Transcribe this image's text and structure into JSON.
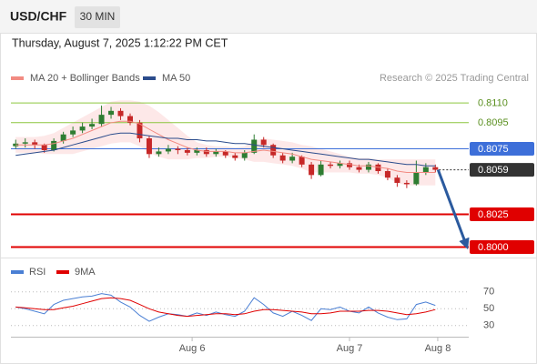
{
  "header": {
    "symbol": "USD/CHF",
    "timeframe": "30 MIN",
    "datetime": "Thursday, August 7, 2025 1:12:22 PM CET"
  },
  "chart_data": [
    {
      "type": "candlestick",
      "source": "Research © 2025 Trading Central",
      "xlim": [
        -0.5,
        47.5
      ],
      "ylim": [
        0.7992,
        0.814
      ],
      "up_color": "#2e7d32",
      "down_color": "#c62828",
      "open": [
        0.8077,
        0.8079,
        0.808,
        0.8078,
        0.8074,
        0.8081,
        0.8086,
        0.8089,
        0.8092,
        0.8094,
        0.8101,
        0.8104,
        0.81,
        0.8095,
        0.8083,
        0.8071,
        0.8073,
        0.8075,
        0.8074,
        0.8072,
        0.8074,
        0.8071,
        0.8073,
        0.807,
        0.8068,
        0.8072,
        0.8082,
        0.8078,
        0.807,
        0.8066,
        0.8069,
        0.8063,
        0.8055,
        0.8063,
        0.8062,
        0.8064,
        0.8061,
        0.8059,
        0.8063,
        0.8058,
        0.8053,
        0.8049,
        0.8048,
        0.8057,
        0.8061
      ],
      "high": [
        0.8082,
        0.8083,
        0.8082,
        0.8079,
        0.8083,
        0.8088,
        0.8092,
        0.8095,
        0.8098,
        0.8108,
        0.8107,
        0.8106,
        0.8102,
        0.8097,
        0.8085,
        0.8076,
        0.8078,
        0.8077,
        0.8076,
        0.8076,
        0.8076,
        0.8075,
        0.8074,
        0.8072,
        0.8074,
        0.8086,
        0.8084,
        0.8079,
        0.8072,
        0.8072,
        0.807,
        0.8065,
        0.8066,
        0.8065,
        0.8066,
        0.8066,
        0.8063,
        0.8065,
        0.8064,
        0.806,
        0.8055,
        0.8051,
        0.8066,
        0.8064,
        0.8063
      ],
      "low": [
        0.8075,
        0.8076,
        0.8075,
        0.8072,
        0.8073,
        0.8079,
        0.8084,
        0.8087,
        0.809,
        0.8092,
        0.8098,
        0.8097,
        0.8093,
        0.808,
        0.8068,
        0.8069,
        0.8071,
        0.8071,
        0.807,
        0.807,
        0.8069,
        0.8069,
        0.8068,
        0.8066,
        0.8066,
        0.8071,
        0.8076,
        0.8068,
        0.8064,
        0.8064,
        0.8061,
        0.8052,
        0.8054,
        0.806,
        0.806,
        0.8059,
        0.8057,
        0.8057,
        0.8056,
        0.8051,
        0.8046,
        0.8045,
        0.8047,
        0.8055,
        0.8057
      ],
      "close": [
        0.8079,
        0.808,
        0.8078,
        0.8074,
        0.8081,
        0.8086,
        0.8089,
        0.8092,
        0.8094,
        0.8101,
        0.8104,
        0.81,
        0.8095,
        0.8083,
        0.8071,
        0.8073,
        0.8075,
        0.8074,
        0.8072,
        0.8074,
        0.8071,
        0.8073,
        0.807,
        0.8068,
        0.8072,
        0.8082,
        0.8078,
        0.807,
        0.8066,
        0.8069,
        0.8063,
        0.8055,
        0.8063,
        0.8062,
        0.8064,
        0.8061,
        0.8059,
        0.8063,
        0.8058,
        0.8053,
        0.8049,
        0.8048,
        0.8057,
        0.8061,
        0.8059
      ],
      "series": [
        {
          "name": "MA 20 + Bollinger Bands",
          "color": "#f28b82",
          "band_color": "#fde2e2",
          "values": [
            0.8078,
            0.8078,
            0.8078,
            0.8078,
            0.8079,
            0.8081,
            0.8083,
            0.8086,
            0.8089,
            0.8092,
            0.8095,
            0.8096,
            0.8096,
            0.8094,
            0.809,
            0.8086,
            0.8082,
            0.8079,
            0.8076,
            0.8074,
            0.8073,
            0.8073,
            0.8073,
            0.8072,
            0.8072,
            0.8073,
            0.8074,
            0.8073,
            0.8072,
            0.8071,
            0.8069,
            0.8067,
            0.8066,
            0.8065,
            0.8064,
            0.8063,
            0.8062,
            0.8062,
            0.8061,
            0.806,
            0.8058,
            0.8057,
            0.8057,
            0.8057,
            0.8057
          ],
          "upper": [
            0.8084,
            0.8084,
            0.8084,
            0.8085,
            0.8087,
            0.8091,
            0.8095,
            0.8099,
            0.8103,
            0.8107,
            0.8111,
            0.8112,
            0.8112,
            0.8111,
            0.8108,
            0.8103,
            0.8097,
            0.8091,
            0.8085,
            0.808,
            0.8078,
            0.8077,
            0.8077,
            0.8076,
            0.8077,
            0.8081,
            0.8083,
            0.8082,
            0.8081,
            0.808,
            0.8078,
            0.8077,
            0.8075,
            0.8073,
            0.8071,
            0.8069,
            0.8068,
            0.8068,
            0.8067,
            0.8067,
            0.8067,
            0.8067,
            0.8067,
            0.8067,
            0.8067
          ],
          "lower": [
            0.8072,
            0.8072,
            0.8072,
            0.8071,
            0.8071,
            0.8071,
            0.8071,
            0.8073,
            0.8075,
            0.8077,
            0.8079,
            0.808,
            0.808,
            0.8077,
            0.8072,
            0.8069,
            0.8067,
            0.8067,
            0.8067,
            0.8068,
            0.8068,
            0.8069,
            0.8069,
            0.8068,
            0.8067,
            0.8065,
            0.8065,
            0.8064,
            0.8063,
            0.8062,
            0.806,
            0.8057,
            0.8057,
            0.8057,
            0.8057,
            0.8057,
            0.8056,
            0.8056,
            0.8055,
            0.8053,
            0.8049,
            0.8047,
            0.8047,
            0.8047,
            0.8047
          ]
        },
        {
          "name": "MA 50",
          "color": "#2b4c8c",
          "values": [
            0.807,
            0.8071,
            0.8072,
            0.8073,
            0.8074,
            0.8076,
            0.8078,
            0.808,
            0.8082,
            0.8084,
            0.8086,
            0.8087,
            0.8087,
            0.8086,
            0.8085,
            0.8084,
            0.8083,
            0.8083,
            0.8082,
            0.8082,
            0.8081,
            0.8081,
            0.808,
            0.8079,
            0.8079,
            0.8078,
            0.8077,
            0.8076,
            0.8075,
            0.8074,
            0.8073,
            0.8072,
            0.8071,
            0.807,
            0.8069,
            0.8068,
            0.8067,
            0.8067,
            0.8066,
            0.8065,
            0.8064,
            0.8063,
            0.8063,
            0.8062,
            0.8062
          ]
        }
      ],
      "levels": [
        {
          "value": 0.811,
          "label": "0.8110",
          "color": "#8cc63f",
          "boxed": false
        },
        {
          "value": 0.8095,
          "color": "#8cc63f",
          "boxed": false
        },
        {
          "value": 0.8075,
          "color": "#3d6fd9",
          "boxed": true
        },
        {
          "value": 0.8059,
          "color": "#333333",
          "boxed": true,
          "dashed": true
        },
        {
          "value": 0.8025,
          "color": "#e00000",
          "boxed": true
        },
        {
          "value": 0.8,
          "label": "0.8000",
          "color": "#e00000",
          "boxed": true
        }
      ],
      "forecast_color": "#2b5a9e"
    },
    {
      "type": "line",
      "xlim": [
        -0.5,
        47.5
      ],
      "ylim": [
        20,
        100
      ],
      "yticks": [
        70,
        50,
        30
      ],
      "grid": true,
      "xticks": [
        {
          "value": 18.5,
          "label": "Aug 6"
        },
        {
          "value": 35,
          "label": "Aug 7"
        },
        {
          "value": 44.25,
          "label": "Aug 8"
        }
      ],
      "series": [
        {
          "name": "RSI",
          "color": "#4a7fd4",
          "values": [
            52,
            50,
            47,
            44,
            55,
            60,
            62,
            64,
            65,
            68,
            66,
            58,
            52,
            42,
            35,
            40,
            44,
            43,
            41,
            45,
            42,
            46,
            43,
            41,
            47,
            63,
            55,
            45,
            41,
            47,
            42,
            36,
            50,
            49,
            52,
            47,
            45,
            52,
            45,
            40,
            37,
            38,
            55,
            58,
            54
          ]
        },
        {
          "name": "9MA",
          "color": "#e00000",
          "values": [
            52,
            51,
            50,
            49,
            49,
            51,
            53,
            56,
            59,
            62,
            63,
            62,
            60,
            55,
            50,
            46,
            44,
            42,
            41,
            42,
            43,
            44,
            44,
            43,
            44,
            47,
            49,
            49,
            48,
            47,
            46,
            44,
            44,
            45,
            47,
            47,
            47,
            48,
            48,
            47,
            45,
            43,
            44,
            46,
            49
          ]
        }
      ]
    }
  ]
}
